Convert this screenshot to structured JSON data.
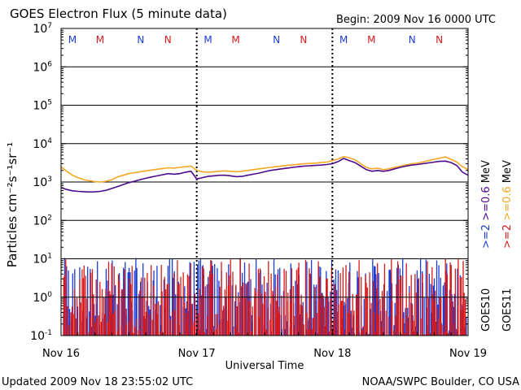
{
  "chart_data": {
    "type": "line",
    "title": "GOES Electron Flux (5 minute data)",
    "begin_label": "Begin: 2009 Nov 16 0000 UTC",
    "xlabel": "Universal Time",
    "ylabel": "Particles cm⁻²s⁻¹sr⁻¹",
    "y_scale": "log",
    "ylim": [
      0.1,
      10000000
    ],
    "xlim_hours": [
      0,
      72
    ],
    "x_ticks": [
      {
        "hour": 0,
        "label": "Nov 16"
      },
      {
        "hour": 24,
        "label": "Nov 17"
      },
      {
        "hour": 48,
        "label": "Nov 18"
      },
      {
        "hour": 72,
        "label": "Nov 19"
      }
    ],
    "y_ticks": [
      {
        "base": "10",
        "exp": "7",
        "value": 10000000
      },
      {
        "base": "10",
        "exp": "6",
        "value": 1000000
      },
      {
        "base": "10",
        "exp": "5",
        "value": 100000
      },
      {
        "base": "10",
        "exp": "4",
        "value": 10000
      },
      {
        "base": "10",
        "exp": "3",
        "value": 1000
      },
      {
        "base": "10",
        "exp": "2",
        "value": 100
      },
      {
        "base": "10",
        "exp": "1",
        "value": 10
      },
      {
        "base": "10",
        "exp": "0",
        "value": 1
      },
      {
        "base": "10",
        "exp": "-1",
        "value": 0.1
      }
    ],
    "threshold_line": 1000,
    "legend": {
      "left_col": ">=2 >=0.6 MeV",
      "left_parts": [
        ">=2",
        " >=0.6",
        " MeV"
      ],
      "right_col": ">=2 >=0.6 MeV",
      "right_parts": [
        ">=2",
        " >=0.6",
        " MeV"
      ],
      "sat_left": "GOES10",
      "sat_right": "GOES11"
    },
    "markers": [
      {
        "label": "M",
        "hour": 2.0,
        "color": "#1a3bd6"
      },
      {
        "label": "M",
        "hour": 6.9,
        "color": "#d61a1a"
      },
      {
        "label": "N",
        "hour": 14.1,
        "color": "#1a3bd6"
      },
      {
        "label": "N",
        "hour": 18.9,
        "color": "#d61a1a"
      },
      {
        "label": "M",
        "hour": 26.0,
        "color": "#1a3bd6"
      },
      {
        "label": "M",
        "hour": 30.9,
        "color": "#d61a1a"
      },
      {
        "label": "N",
        "hour": 38.1,
        "color": "#1a3bd6"
      },
      {
        "label": "N",
        "hour": 42.9,
        "color": "#d61a1a"
      },
      {
        "label": "M",
        "hour": 50.0,
        "color": "#1a3bd6"
      },
      {
        "label": "M",
        "hour": 54.9,
        "color": "#d61a1a"
      },
      {
        "label": "N",
        "hour": 62.1,
        "color": "#1a3bd6"
      },
      {
        "label": "N",
        "hour": 66.9,
        "color": "#d61a1a"
      }
    ],
    "noon_ticks_hours": [
      24,
      48
    ],
    "series": [
      {
        "name": "GOES11 >=0.6 MeV",
        "color": "#f5a623",
        "x": [
          0,
          1,
          2,
          3,
          4,
          5,
          6,
          7,
          8,
          9,
          10,
          11,
          12,
          13,
          14,
          15,
          16,
          17,
          18,
          19,
          20,
          21,
          22,
          23,
          24,
          25,
          26,
          27,
          28,
          29,
          30,
          31,
          32,
          33,
          34,
          35,
          36,
          37,
          38,
          39,
          40,
          41,
          42,
          43,
          44,
          45,
          46,
          47,
          48,
          49,
          50,
          51,
          52,
          53,
          54,
          55,
          56,
          57,
          58,
          59,
          60,
          61,
          62,
          63,
          64,
          65,
          66,
          67,
          68,
          69,
          70,
          71,
          72
        ],
        "y": [
          2500,
          1900,
          1500,
          1300,
          1150,
          1080,
          1020,
          1000,
          1050,
          1150,
          1350,
          1500,
          1650,
          1750,
          1850,
          1950,
          2050,
          2150,
          2250,
          2350,
          2300,
          2400,
          2500,
          2600,
          2000,
          1850,
          1800,
          1850,
          1900,
          1950,
          1900,
          1850,
          1900,
          2000,
          2100,
          2200,
          2300,
          2400,
          2500,
          2600,
          2700,
          2800,
          2900,
          3000,
          3050,
          3100,
          3200,
          3300,
          3600,
          4000,
          4600,
          4300,
          3800,
          3000,
          2400,
          2200,
          2300,
          2100,
          2200,
          2400,
          2600,
          2800,
          3000,
          3100,
          3300,
          3600,
          3900,
          4200,
          4500,
          3900,
          3300,
          2500,
          2100
        ]
      },
      {
        "name": "GOES11 >=2 MeV",
        "color": "#4b0a8c",
        "x": [
          0,
          1,
          2,
          3,
          4,
          5,
          6,
          7,
          8,
          9,
          10,
          11,
          12,
          13,
          14,
          15,
          16,
          17,
          18,
          19,
          20,
          21,
          22,
          23,
          24,
          25,
          26,
          27,
          28,
          29,
          30,
          31,
          32,
          33,
          34,
          35,
          36,
          37,
          38,
          39,
          40,
          41,
          42,
          43,
          44,
          45,
          46,
          47,
          48,
          49,
          50,
          51,
          52,
          53,
          54,
          55,
          56,
          57,
          58,
          59,
          60,
          61,
          62,
          63,
          64,
          65,
          66,
          67,
          68,
          69,
          70,
          71,
          72
        ],
        "y": [
          720,
          640,
          590,
          570,
          560,
          550,
          555,
          570,
          610,
          680,
          760,
          860,
          960,
          1050,
          1150,
          1250,
          1350,
          1450,
          1550,
          1650,
          1600,
          1650,
          1800,
          1900,
          1200,
          1300,
          1400,
          1450,
          1500,
          1500,
          1450,
          1380,
          1400,
          1500,
          1600,
          1700,
          1850,
          2000,
          2100,
          2200,
          2300,
          2400,
          2500,
          2600,
          2650,
          2700,
          2750,
          2850,
          3000,
          3400,
          4100,
          3600,
          3200,
          2600,
          2100,
          1900,
          2000,
          1900,
          2000,
          2200,
          2400,
          2600,
          2750,
          2850,
          3000,
          3150,
          3300,
          3450,
          3500,
          3200,
          2700,
          1800,
          1500
        ]
      }
    ]
  },
  "footer": {
    "updated": "Updated 2009 Nov 18 23:55:02 UTC",
    "source": "NOAA/SWPC Boulder, CO USA"
  },
  "colors": {
    "goes10": "#1a3bd6",
    "goes11": "#d61a1a",
    "orange": "#f5a623",
    "purple": "#4b0a8c"
  }
}
